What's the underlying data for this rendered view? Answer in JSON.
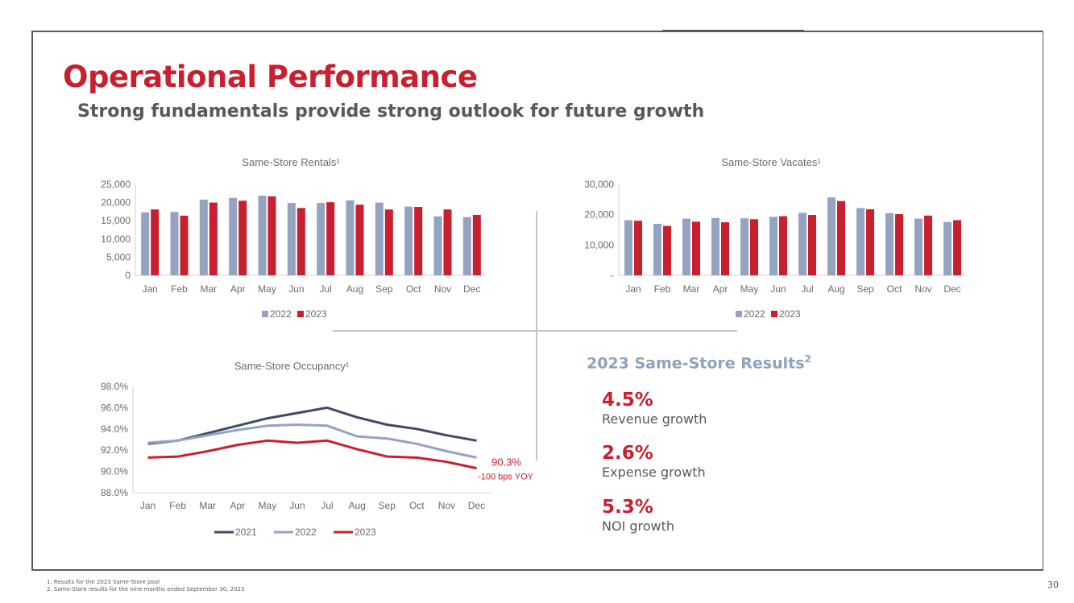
{
  "slide": {
    "title": "Operational Performance",
    "subtitle": "Strong fundamentals provide strong outlook for future growth",
    "page_number": "30"
  },
  "colors": {
    "accent_red": "#c8202f",
    "steel_blue": "#94a3bf",
    "navy": "#3e4b63",
    "text_gray": "#595959"
  },
  "results": {
    "title": "2023 Same-Store Results",
    "footnote_marker": "2",
    "metrics": [
      {
        "value": "4.5%",
        "label": "Revenue growth"
      },
      {
        "value": "2.6%",
        "label": "Expense growth"
      },
      {
        "value": "5.3%",
        "label": "NOI growth"
      }
    ]
  },
  "footnotes": [
    "1.    Results for the 2023 Same-Store pool",
    "2.    Same-Store results for the nine months ended September 30, 2023"
  ],
  "chart_data": [
    {
      "id": "rentals",
      "type": "bar",
      "title": "Same-Store Rentals¹",
      "categories": [
        "Jan",
        "Feb",
        "Mar",
        "Apr",
        "May",
        "Jun",
        "Jul",
        "Aug",
        "Sep",
        "Oct",
        "Nov",
        "Dec"
      ],
      "series": [
        {
          "name": "2022",
          "color": "#94a3bf",
          "values": [
            17300,
            17400,
            20800,
            21300,
            21900,
            19900,
            19900,
            20600,
            20000,
            18900,
            16200,
            16000
          ]
        },
        {
          "name": "2023",
          "color": "#c8202f",
          "values": [
            18100,
            16400,
            20000,
            20500,
            21700,
            18500,
            20100,
            19400,
            18100,
            18800,
            18100,
            16600
          ]
        }
      ],
      "ylim": [
        0,
        25000
      ],
      "yticks": [
        "0",
        "5,000",
        "10,000",
        "15,000",
        "20,000",
        "25,000"
      ],
      "legend": "bottom"
    },
    {
      "id": "vacates",
      "type": "bar",
      "title": "Same-Store Vacates¹",
      "categories": [
        "Jan",
        "Feb",
        "Mar",
        "Apr",
        "May",
        "Jun",
        "Jul",
        "Aug",
        "Sep",
        "Oct",
        "Nov",
        "Dec"
      ],
      "series": [
        {
          "name": "2022",
          "color": "#94a3bf",
          "values": [
            18200,
            17000,
            18700,
            18900,
            18800,
            19300,
            20600,
            25700,
            22200,
            20500,
            18700,
            17600
          ]
        },
        {
          "name": "2023",
          "color": "#c8202f",
          "values": [
            18000,
            16300,
            17700,
            17500,
            18500,
            19500,
            19900,
            24500,
            21800,
            20200,
            19700,
            18200
          ]
        }
      ],
      "ylim": [
        0,
        30000
      ],
      "yticks": [
        "-",
        "10,000",
        "20,000",
        "30,000"
      ],
      "legend": "bottom"
    },
    {
      "id": "occupancy",
      "type": "line",
      "title": "Same-Store Occupancy¹",
      "categories": [
        "Jan",
        "Feb",
        "Mar",
        "Apr",
        "May",
        "Jun",
        "Jul",
        "Aug",
        "Sep",
        "Oct",
        "Nov",
        "Dec"
      ],
      "series": [
        {
          "name": "2021",
          "color": "#3e4b63",
          "values": [
            92.6,
            92.9,
            93.6,
            94.3,
            95.0,
            95.5,
            96.0,
            95.1,
            94.4,
            94.0,
            93.4,
            92.9
          ]
        },
        {
          "name": "2022",
          "color": "#94a3bf",
          "values": [
            92.7,
            92.9,
            93.4,
            93.9,
            94.3,
            94.4,
            94.3,
            93.3,
            93.1,
            92.6,
            91.9,
            91.3
          ]
        },
        {
          "name": "2023",
          "color": "#c8202f",
          "values": [
            91.3,
            91.4,
            91.9,
            92.5,
            92.9,
            92.7,
            92.9,
            92.1,
            91.4,
            91.3,
            90.9,
            90.3
          ]
        }
      ],
      "ylim": [
        88.0,
        98.0
      ],
      "yticks": [
        "88.0%",
        "90.0%",
        "92.0%",
        "94.0%",
        "96.0%",
        "98.0%"
      ],
      "annotation": {
        "value_label": "90.3%",
        "change_label": "-100 bps YOY"
      },
      "legend": "bottom"
    }
  ]
}
